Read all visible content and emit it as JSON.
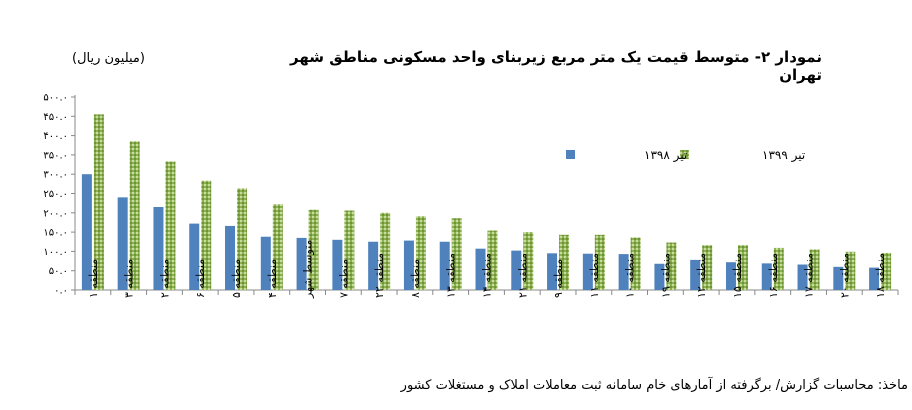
{
  "title": "نمودار ۲- متوسط قیمت یک متر مربع زیربنای واحد مسکونی مناطق شهر تهران",
  "unit": "(میلیون ریال)",
  "source": "ماخذ: محاسبات گزارش/ برگرفته از آمارهای خام سامانه ثبت معاملات املاک و مستغلات کشور",
  "chart_data": {
    "type": "bar",
    "title": "نمودار ۲- متوسط قیمت یک متر مربع زیربنای واحد مسکونی مناطق شهر تهران",
    "ylabel": "(میلیون ریال)",
    "ylim": [
      0,
      500
    ],
    "grid": false,
    "legend_position": "top-right",
    "y_ticks": [
      "۵۰۰.۰",
      "۴۵۰.۰",
      "۴۰۰.۰",
      "۳۵۰.۰",
      "۳۰۰.۰",
      "۲۵۰.۰",
      "۲۰۰.۰",
      "۱۵۰.۰",
      "۱۰۰.۰",
      "۵۰.۰",
      "۰.۰"
    ],
    "y_tick_values": [
      500,
      450,
      400,
      350,
      300,
      250,
      200,
      150,
      100,
      50,
      0
    ],
    "categories": [
      "منطقه ۱",
      "منطقه ۳",
      "منطقه ۲",
      "منطقه ۶",
      "منطقه ۵",
      "منطقه ۴",
      "متوسط شهر",
      "منطقه ۷",
      "منطقه ۲۲",
      "منطقه ۸",
      "منطقه ۱۳",
      "منطقه ۱۴",
      "منطقه ۲۱",
      "منطقه ۹",
      "منطقه ۱۱",
      "منطقه ۱۰",
      "منطقه ۱۹",
      "منطقه ۱۲",
      "منطقه ۱۵",
      "منطقه ۱۶",
      "منطقه ۱۷",
      "منطقه ۲۰",
      "منطقه ۱۸"
    ],
    "series": [
      {
        "name": "تیر ۱۳۹۸",
        "color": "#4f81bd",
        "values": [
          300,
          240,
          215,
          172,
          166,
          138,
          135,
          130,
          125,
          128,
          125,
          107,
          102,
          95,
          94,
          93,
          68,
          78,
          72,
          69,
          66,
          60,
          58
        ]
      },
      {
        "name": "تیر ۱۳۹۹",
        "color": "#8db151",
        "values": [
          455,
          385,
          333,
          283,
          263,
          222,
          208,
          206,
          200,
          191,
          186,
          154,
          150,
          143,
          143,
          136,
          123,
          116,
          116,
          109,
          105,
          99,
          96
        ]
      }
    ]
  }
}
